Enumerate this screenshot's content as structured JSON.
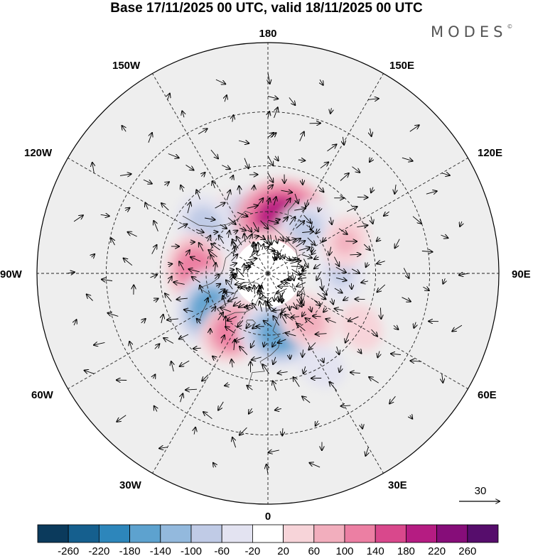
{
  "title": "Base 17/11/2025 00 UTC, valid 18/11/2025 00 UTC",
  "brand": "MODES",
  "brand_mark": "©",
  "map": {
    "projection": "north polar stereographic",
    "longitude_labels": {
      "top": "180",
      "bottom": "0",
      "left": "90W",
      "right": "90E",
      "upper_left_1": "150W",
      "upper_left_2": "120W",
      "upper_right_1": "150E",
      "upper_right_2": "120E",
      "lower_left_1": "60W",
      "lower_left_2": "30W",
      "lower_right_1": "60E",
      "lower_right_2": "30E"
    },
    "vector_reference": {
      "value": "30"
    }
  },
  "colorbar": {
    "labels": [
      "-260",
      "-220",
      "-180",
      "-140",
      "-100",
      "-60",
      "-20",
      "20",
      "60",
      "100",
      "140",
      "180",
      "220",
      "260"
    ],
    "colors": [
      "#0b3a5c",
      "#155f8e",
      "#2d86bb",
      "#5da2cf",
      "#93b9dd",
      "#c0cbe6",
      "#e3e3f1",
      "#ffffff",
      "#f7d4d9",
      "#f2aebd",
      "#ec7fa3",
      "#d9488c",
      "#b51c82",
      "#860d79",
      "#560d6c"
    ]
  },
  "anomalies": [
    {
      "lon": -155,
      "lat": 58,
      "value": 50
    },
    {
      "lon": -170,
      "lat": 63,
      "value": -150
    },
    {
      "lon": 168,
      "lat": 62,
      "value": 200
    },
    {
      "lon": 140,
      "lat": 62,
      "value": -90
    },
    {
      "lon": -128,
      "lat": 52,
      "value": -100
    },
    {
      "lon": -93,
      "lat": 55,
      "value": 130
    },
    {
      "lon": -60,
      "lat": 57,
      "value": -150
    },
    {
      "lon": -30,
      "lat": 58,
      "value": 130
    },
    {
      "lon": 10,
      "lat": 60,
      "value": -160
    },
    {
      "lon": 40,
      "lat": 60,
      "value": 90
    },
    {
      "lon": 90,
      "lat": 55,
      "value": -70
    },
    {
      "lon": 112,
      "lat": 50,
      "value": 60
    },
    {
      "lon": 60,
      "lat": 40,
      "value": 40
    },
    {
      "lon": -140,
      "lat": 80,
      "value": -60
    },
    {
      "lon": 175,
      "lat": 80,
      "value": 80
    },
    {
      "lon": 30,
      "lat": 40,
      "value": -40
    }
  ]
}
